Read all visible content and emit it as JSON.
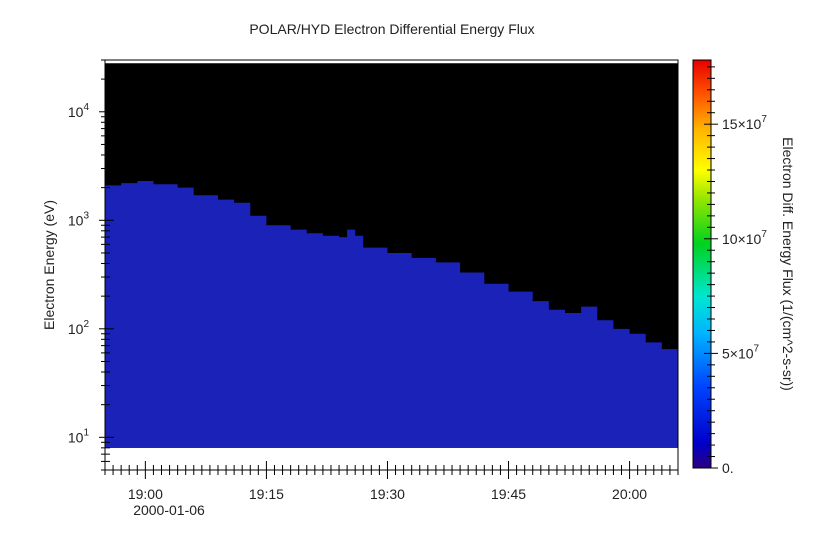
{
  "chart_data": {
    "type": "heatmap",
    "title": "POLAR/HYD  Electron Differential Energy Flux",
    "ylabel": "Electron Energy (eV)",
    "colorbar_label": "Electron Diff. Energy Flux (1/(cm^2-s-sr))",
    "y_scale": "log",
    "ylim": [
      5,
      30000
    ],
    "xlim": [
      "18:55",
      "20:06"
    ],
    "date_label": "2000-01-06",
    "x_ticks": [
      {
        "value": "19:00",
        "label": "19:00"
      },
      {
        "value": "19:15",
        "label": "19:15"
      },
      {
        "value": "19:30",
        "label": "19:30"
      },
      {
        "value": "19:45",
        "label": "19:45"
      },
      {
        "value": "20:00",
        "label": "20:00"
      }
    ],
    "y_ticks": [
      {
        "value": 10,
        "base": "10",
        "exp": "1"
      },
      {
        "value": 100,
        "base": "10",
        "exp": "2"
      },
      {
        "value": 1000,
        "base": "10",
        "exp": "3"
      },
      {
        "value": 10000,
        "base": "10",
        "exp": "4"
      }
    ],
    "color_range": [
      0,
      17800000
    ],
    "colorbar_ticks": [
      {
        "value": 0,
        "label": "0."
      },
      {
        "value": 50000000,
        "base": "5×10",
        "exp": "7"
      },
      {
        "value": 100000000,
        "base": "10×10",
        "exp": "7"
      },
      {
        "value": 150000000,
        "base": "15×10",
        "exp": "7"
      }
    ],
    "data_energy_range": [
      8,
      28000
    ],
    "background_color": "#000000",
    "signal_color": "#1a22b8",
    "upper_envelope": [
      {
        "time": "18:55",
        "energy": 2100
      },
      {
        "time": "18:57",
        "energy": 2200
      },
      {
        "time": "18:59",
        "energy": 2300
      },
      {
        "time": "19:01",
        "energy": 2150
      },
      {
        "time": "19:04",
        "energy": 2000
      },
      {
        "time": "19:06",
        "energy": 1700
      },
      {
        "time": "19:09",
        "energy": 1550
      },
      {
        "time": "19:11",
        "energy": 1450
      },
      {
        "time": "19:13",
        "energy": 1100
      },
      {
        "time": "19:15",
        "energy": 900
      },
      {
        "time": "19:18",
        "energy": 820
      },
      {
        "time": "19:20",
        "energy": 760
      },
      {
        "time": "19:22",
        "energy": 720
      },
      {
        "time": "19:24",
        "energy": 700
      },
      {
        "time": "19:25",
        "energy": 820
      },
      {
        "time": "19:26",
        "energy": 720
      },
      {
        "time": "19:27",
        "energy": 560
      },
      {
        "time": "19:30",
        "energy": 500
      },
      {
        "time": "19:33",
        "energy": 450
      },
      {
        "time": "19:36",
        "energy": 410
      },
      {
        "time": "19:39",
        "energy": 330
      },
      {
        "time": "19:42",
        "energy": 260
      },
      {
        "time": "19:45",
        "energy": 220
      },
      {
        "time": "19:48",
        "energy": 180
      },
      {
        "time": "19:50",
        "energy": 150
      },
      {
        "time": "19:52",
        "energy": 140
      },
      {
        "time": "19:54",
        "energy": 160
      },
      {
        "time": "19:56",
        "energy": 120
      },
      {
        "time": "19:58",
        "energy": 100
      },
      {
        "time": "20:00",
        "energy": 90
      },
      {
        "time": "20:02",
        "energy": 75
      },
      {
        "time": "20:04",
        "energy": 65
      },
      {
        "time": "20:06",
        "energy": 60
      }
    ]
  }
}
